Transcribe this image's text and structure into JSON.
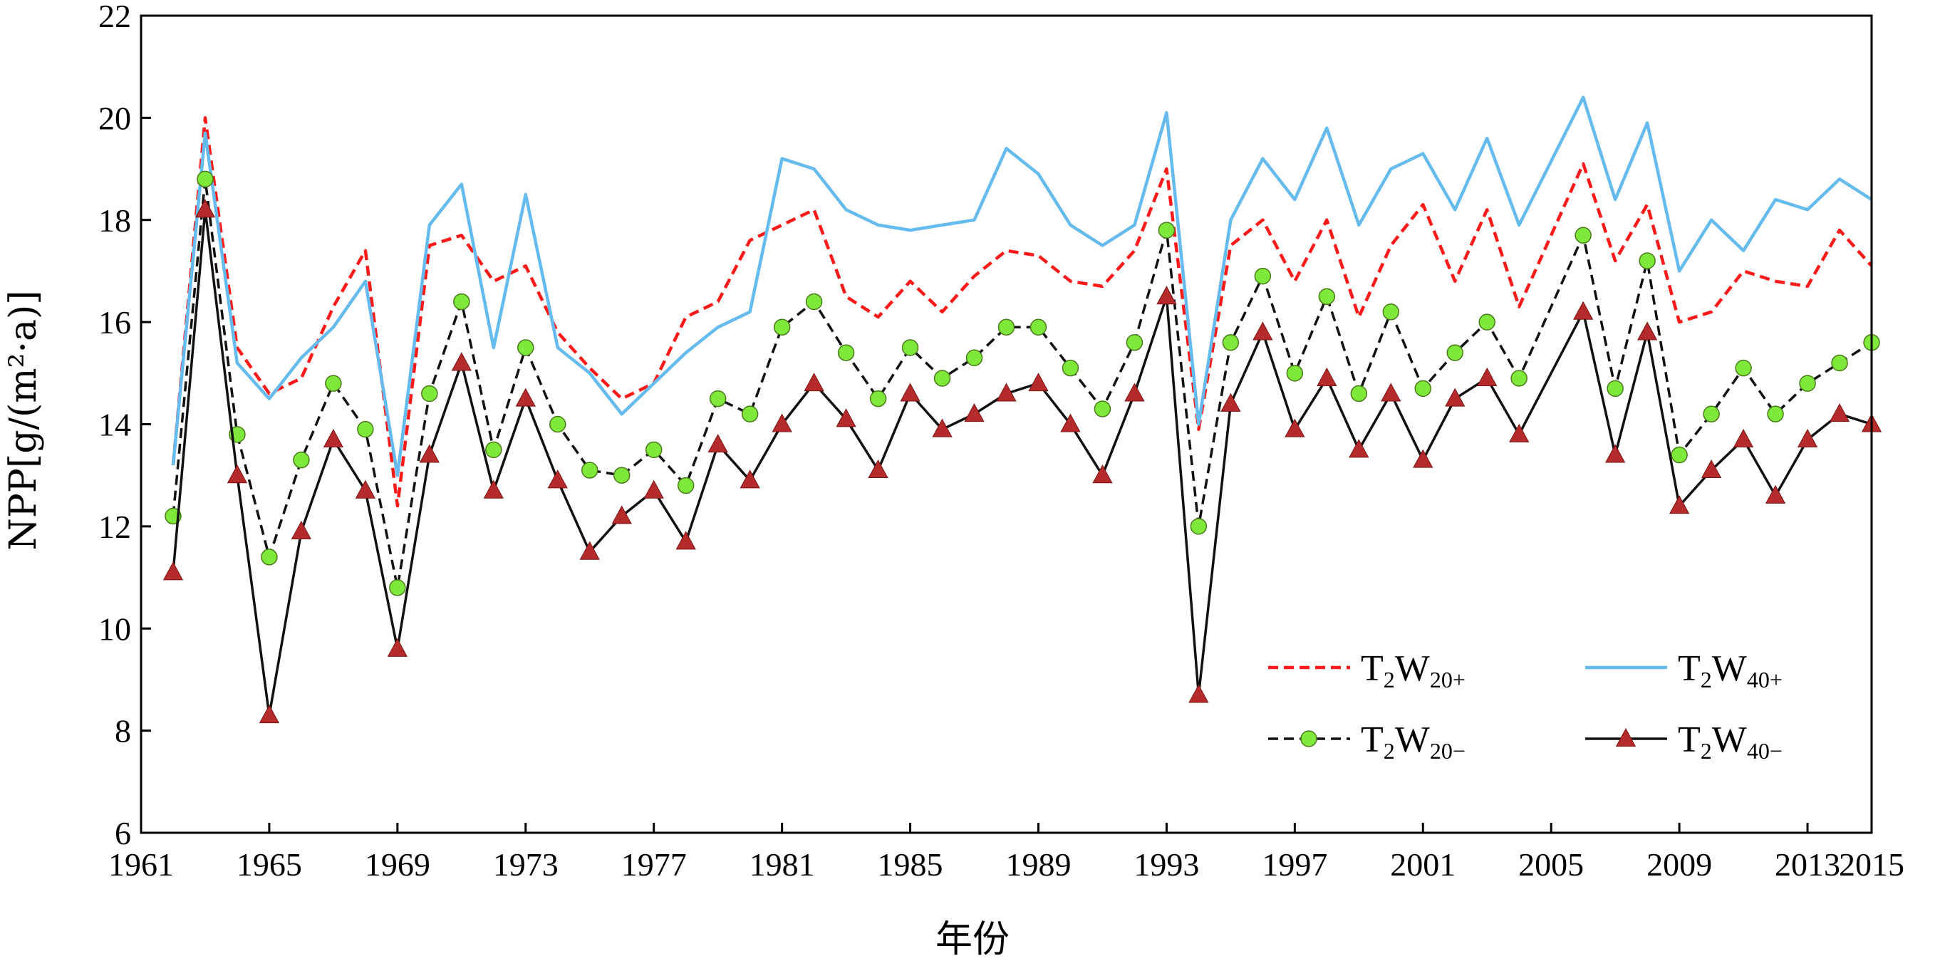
{
  "chart_data": {
    "type": "line",
    "title": "",
    "xlabel": "年份",
    "ylabel": "NPP[g/(m²·a)]",
    "ylim": [
      6,
      22
    ],
    "xlim": [
      1961,
      2015
    ],
    "yticks": [
      6,
      8,
      10,
      12,
      14,
      16,
      18,
      20,
      22
    ],
    "xticks": [
      1961,
      1965,
      1969,
      1973,
      1977,
      1981,
      1985,
      1989,
      1993,
      1997,
      2001,
      2005,
      2009,
      2013,
      2015
    ],
    "ytick_labels": [
      "6",
      "8",
      "10",
      "12",
      "14",
      "16",
      "18",
      "20",
      "22"
    ],
    "xtick_labels": [
      "1961",
      "1965",
      "1969",
      "1973",
      "1977",
      "1981",
      "1985",
      "1989",
      "1993",
      "1997",
      "2001",
      "2005",
      "2009",
      "2013",
      "2015"
    ],
    "grid": false,
    "legend_position": "bottom-right",
    "x": [
      1962,
      1963,
      1964,
      1965,
      1966,
      1967,
      1968,
      1969,
      1970,
      1971,
      1972,
      1973,
      1974,
      1975,
      1976,
      1977,
      1978,
      1979,
      1980,
      1981,
      1982,
      1983,
      1984,
      1985,
      1986,
      1987,
      1988,
      1989,
      1990,
      1991,
      1992,
      1993,
      1994,
      1995,
      1996,
      1997,
      1998,
      1999,
      2000,
      2001,
      2002,
      2003,
      2004,
      2006,
      2007,
      2008,
      2009,
      2010,
      2011,
      2012,
      2013,
      2014,
      2015
    ],
    "series": [
      {
        "legend_main": "T",
        "legend_sub1": "2",
        "legend_mid": "W",
        "legend_sub2": "20+",
        "color": "#ff1a1a",
        "style": "dashed",
        "marker": "none",
        "values": [
          13.2,
          20.0,
          15.5,
          14.6,
          14.9,
          16.3,
          17.4,
          12.4,
          17.5,
          17.7,
          16.8,
          17.1,
          15.8,
          15.1,
          14.5,
          14.8,
          16.1,
          16.4,
          17.6,
          17.9,
          18.2,
          16.5,
          16.1,
          16.8,
          16.2,
          16.9,
          17.4,
          17.3,
          16.8,
          16.7,
          17.4,
          19.0,
          13.9,
          17.5,
          18.0,
          16.8,
          18.0,
          16.1,
          17.5,
          18.3,
          16.8,
          18.2,
          16.3,
          19.1,
          17.2,
          18.3,
          16.0,
          16.2,
          17.0,
          16.8,
          16.7,
          17.8,
          17.1
        ]
      },
      {
        "legend_main": "T",
        "legend_sub1": "2",
        "legend_mid": "W",
        "legend_sub2": "40+",
        "color": "#66bbee",
        "style": "solid",
        "marker": "none",
        "values": [
          13.2,
          19.7,
          15.2,
          14.5,
          15.3,
          15.9,
          16.8,
          13.0,
          17.9,
          18.7,
          15.5,
          18.5,
          15.5,
          15.0,
          14.2,
          14.8,
          15.4,
          15.9,
          16.2,
          19.2,
          19.0,
          18.2,
          17.9,
          17.8,
          17.9,
          18.0,
          19.4,
          18.9,
          17.9,
          17.5,
          17.9,
          20.1,
          14.0,
          18.0,
          19.2,
          18.4,
          19.8,
          17.9,
          19.0,
          19.3,
          18.2,
          19.6,
          17.9,
          20.4,
          18.4,
          19.9,
          17.0,
          18.0,
          17.4,
          18.4,
          18.2,
          18.8,
          18.4
        ]
      },
      {
        "legend_main": "T",
        "legend_sub1": "2",
        "legend_mid": "W",
        "legend_sub2": "20−",
        "color": "#111111",
        "style": "dashed",
        "marker": "circle",
        "marker_color": "#7ee83b",
        "values": [
          12.2,
          18.8,
          13.8,
          11.4,
          13.3,
          14.8,
          13.9,
          10.8,
          14.6,
          16.4,
          13.5,
          15.5,
          14.0,
          13.1,
          13.0,
          13.5,
          12.8,
          14.5,
          14.2,
          15.9,
          16.4,
          15.4,
          14.5,
          15.5,
          14.9,
          15.3,
          15.9,
          15.9,
          15.1,
          14.3,
          15.6,
          17.8,
          12.0,
          15.6,
          16.9,
          15.0,
          16.5,
          14.6,
          16.2,
          14.7,
          15.4,
          16.0,
          14.9,
          17.7,
          14.7,
          17.2,
          13.4,
          14.2,
          15.1,
          14.2,
          14.8,
          15.2,
          15.6
        ]
      },
      {
        "legend_main": "T",
        "legend_sub1": "2",
        "legend_mid": "W",
        "legend_sub2": "40−",
        "color": "#111111",
        "style": "solid",
        "marker": "triangle",
        "marker_color": "#b52a2a",
        "values": [
          11.1,
          18.2,
          13.0,
          8.3,
          11.9,
          13.7,
          12.7,
          9.6,
          13.4,
          15.2,
          12.7,
          14.5,
          12.9,
          11.5,
          12.2,
          12.7,
          11.7,
          13.6,
          12.9,
          14.0,
          14.8,
          14.1,
          13.1,
          14.6,
          13.9,
          14.2,
          14.6,
          14.8,
          14.0,
          13.0,
          14.6,
          16.5,
          8.7,
          14.4,
          15.8,
          13.9,
          14.9,
          13.5,
          14.6,
          13.3,
          14.5,
          14.9,
          13.8,
          16.2,
          13.4,
          15.8,
          12.4,
          13.1,
          13.7,
          12.6,
          13.7,
          14.2,
          14.0
        ]
      }
    ]
  }
}
